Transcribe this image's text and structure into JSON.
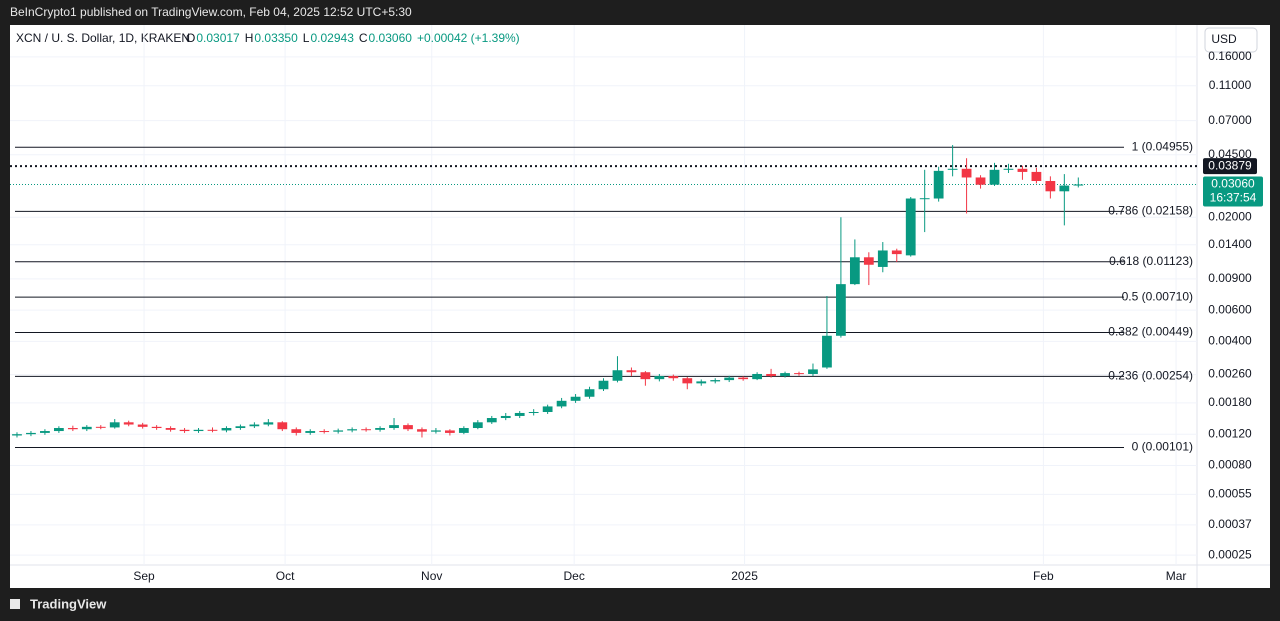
{
  "header": {
    "published": "BeInCrypto1 published on TradingView.com, Feb 04, 2025 12:52 UTC+5:30",
    "brand": "TradingView"
  },
  "chart_data": {
    "type": "candlestick",
    "symbol": "XCN / U. S. Dollar, 1D, KRAKEN",
    "legend_items": [
      "O",
      "0.03017",
      "H",
      "0.03350",
      "L",
      "0.02943",
      "C",
      "0.03060",
      "+0.00042 (+1.39%)"
    ],
    "currency": "USD",
    "up_color": "#089981",
    "down_color": "#f23645",
    "log_scale": true,
    "grid": true,
    "categories": [
      null,
      null,
      null,
      null,
      null,
      null,
      null,
      null,
      null,
      null,
      null,
      null,
      null,
      null,
      null,
      null,
      null,
      null,
      null,
      null,
      null,
      null,
      null,
      null,
      null,
      null,
      null,
      null,
      null,
      null,
      null,
      null,
      null,
      null,
      null,
      null,
      null,
      null,
      null,
      null,
      null,
      null,
      null,
      null,
      null,
      null,
      null,
      null,
      null,
      null,
      null,
      null,
      null,
      null,
      null,
      null,
      null,
      null,
      null,
      null,
      null,
      null,
      null,
      null,
      null,
      null,
      null,
      null,
      null,
      null,
      null,
      null,
      null,
      null,
      null,
      null,
      null
    ],
    "open": [
      0.00118,
      0.0012,
      0.00122,
      0.00125,
      0.0013,
      0.00128,
      0.00132,
      0.00131,
      0.0014,
      0.00136,
      0.00132,
      0.0013,
      0.00127,
      0.00125,
      0.00127,
      0.00126,
      0.0013,
      0.00133,
      0.00136,
      0.0014,
      0.00128,
      0.00122,
      0.00125,
      0.00124,
      0.00126,
      0.00128,
      0.00127,
      0.0013,
      0.00135,
      0.00128,
      0.00124,
      0.00126,
      0.00122,
      0.0013,
      0.0014,
      0.00148,
      0.00152,
      0.00158,
      0.0016,
      0.00172,
      0.00185,
      0.00195,
      0.00215,
      0.0024,
      0.00275,
      0.00268,
      0.00245,
      0.00255,
      0.00248,
      0.00232,
      0.00238,
      0.00242,
      0.0025,
      0.00245,
      0.00262,
      0.00255,
      0.00265,
      0.00262,
      0.00285,
      0.0043,
      0.0084,
      0.0119,
      0.0105,
      0.013,
      0.0122,
      0.0255,
      0.0255,
      0.037,
      0.0375,
      0.0335,
      0.0305,
      0.037,
      0.0375,
      0.036,
      0.032,
      0.028,
      0.03017
    ],
    "high": [
      0.00123,
      0.00125,
      0.00128,
      0.00133,
      0.00134,
      0.00135,
      0.00135,
      0.00146,
      0.00143,
      0.00139,
      0.00135,
      0.00133,
      0.0013,
      0.0013,
      0.00131,
      0.00133,
      0.00136,
      0.0014,
      0.00146,
      0.00142,
      0.00131,
      0.00128,
      0.00128,
      0.00129,
      0.00131,
      0.00131,
      0.00133,
      0.00148,
      0.00138,
      0.00131,
      0.0013,
      0.00128,
      0.00133,
      0.00144,
      0.00152,
      0.00158,
      0.00162,
      0.00166,
      0.00176,
      0.00192,
      0.00202,
      0.00222,
      0.00248,
      0.0033,
      0.00285,
      0.00272,
      0.00262,
      0.0026,
      0.00252,
      0.00244,
      0.00248,
      0.00256,
      0.00254,
      0.00268,
      0.0028,
      0.0027,
      0.0027,
      0.003,
      0.0072,
      0.02,
      0.015,
      0.0127,
      0.0145,
      0.0133,
      0.026,
      0.037,
      0.0385,
      0.051,
      0.043,
      0.0345,
      0.0405,
      0.04,
      0.039,
      0.038,
      0.034,
      0.035,
      0.0335
    ],
    "low": [
      0.00115,
      0.00117,
      0.00119,
      0.00122,
      0.00125,
      0.00125,
      0.00128,
      0.00129,
      0.00133,
      0.00129,
      0.00127,
      0.00124,
      0.00122,
      0.00122,
      0.00123,
      0.00123,
      0.00127,
      0.0013,
      0.00133,
      0.00125,
      0.00118,
      0.00119,
      0.00121,
      0.00121,
      0.00123,
      0.00124,
      0.00124,
      0.00127,
      0.00125,
      0.00115,
      0.00121,
      0.00118,
      0.0012,
      0.00128,
      0.00137,
      0.00144,
      0.00148,
      0.00153,
      0.00156,
      0.00168,
      0.0018,
      0.0019,
      0.0021,
      0.00235,
      0.00255,
      0.00225,
      0.00238,
      0.0024,
      0.00215,
      0.00225,
      0.00232,
      0.00236,
      0.0024,
      0.00242,
      0.0025,
      0.0025,
      0.00256,
      0.00255,
      0.0028,
      0.0042,
      0.0083,
      0.0083,
      0.0098,
      0.0112,
      0.012,
      0.0165,
      0.0245,
      0.034,
      0.021,
      0.029,
      0.03,
      0.0355,
      0.0325,
      0.031,
      0.0255,
      0.018,
      0.02943
    ],
    "close": [
      0.0012,
      0.00122,
      0.00125,
      0.0013,
      0.00128,
      0.00132,
      0.00131,
      0.0014,
      0.00136,
      0.00132,
      0.0013,
      0.00127,
      0.00125,
      0.00127,
      0.00126,
      0.0013,
      0.00133,
      0.00136,
      0.0014,
      0.00128,
      0.00122,
      0.00125,
      0.00124,
      0.00126,
      0.00128,
      0.00127,
      0.0013,
      0.00135,
      0.00128,
      0.00124,
      0.00126,
      0.00122,
      0.0013,
      0.0014,
      0.00148,
      0.00152,
      0.00158,
      0.0016,
      0.00172,
      0.00185,
      0.00195,
      0.00215,
      0.0024,
      0.00275,
      0.00268,
      0.00245,
      0.00255,
      0.00248,
      0.00232,
      0.00238,
      0.00242,
      0.0025,
      0.00245,
      0.00262,
      0.00255,
      0.00265,
      0.00262,
      0.00278,
      0.0043,
      0.0084,
      0.0119,
      0.0108,
      0.013,
      0.0124,
      0.0255,
      0.0256,
      0.0365,
      0.0375,
      0.0335,
      0.0305,
      0.037,
      0.0375,
      0.036,
      0.032,
      0.028,
      0.03017,
      0.0306
    ],
    "xlim": [
      0,
      85
    ],
    "xticks": [
      {
        "value": 9.6,
        "label": "Sep"
      },
      {
        "value": 19.7,
        "label": "Oct"
      },
      {
        "value": 30.2,
        "label": "Nov"
      },
      {
        "value": 40.4,
        "label": "Dec"
      },
      {
        "value": 52.6,
        "label": "2025"
      },
      {
        "value": 74,
        "label": "Feb"
      },
      {
        "value": 83.5,
        "label": "Mar"
      }
    ],
    "ylim": [
      0.00022,
      0.242
    ],
    "yticks": [
      {
        "value": 0.16,
        "label": "0.16000"
      },
      {
        "value": 0.11,
        "label": "0.11000"
      },
      {
        "value": 0.07,
        "label": "0.07000"
      },
      {
        "value": 0.045,
        "label": "0.04500"
      },
      {
        "value": 0.02,
        "label": "0.02000"
      },
      {
        "value": 0.014,
        "label": "0.01400"
      },
      {
        "value": 0.009,
        "label": "0.00900"
      },
      {
        "value": 0.006,
        "label": "0.00600"
      },
      {
        "value": 0.004,
        "label": "0.00400"
      },
      {
        "value": 0.0026,
        "label": "0.00260"
      },
      {
        "value": 0.0018,
        "label": "0.00180"
      },
      {
        "value": 0.0012,
        "label": "0.00120"
      },
      {
        "value": 0.0008,
        "label": "0.00080"
      },
      {
        "value": 0.00055,
        "label": "0.00055"
      },
      {
        "value": 0.00037,
        "label": "0.00037"
      },
      {
        "value": 0.00025,
        "label": "0.00025"
      }
    ],
    "fib_levels": [
      {
        "value": 0.04955,
        "label": "1 (0.04955)"
      },
      {
        "value": 0.02158,
        "label": "0.786 (0.02158)"
      },
      {
        "value": 0.01123,
        "label": "0.618 (0.01123)"
      },
      {
        "value": 0.0071,
        "label": "0.5 (0.00710)"
      },
      {
        "value": 0.00449,
        "label": "0.382 (0.00449)"
      },
      {
        "value": 0.00254,
        "label": "0.236 (0.00254)"
      },
      {
        "value": 0.00101,
        "label": "0 (0.00101)"
      }
    ],
    "marker_line": {
      "value": 0.03879,
      "label": "0.03879"
    },
    "current_price": {
      "value": 0.0306,
      "label": "0.03060",
      "countdown": "16:37:54"
    }
  }
}
